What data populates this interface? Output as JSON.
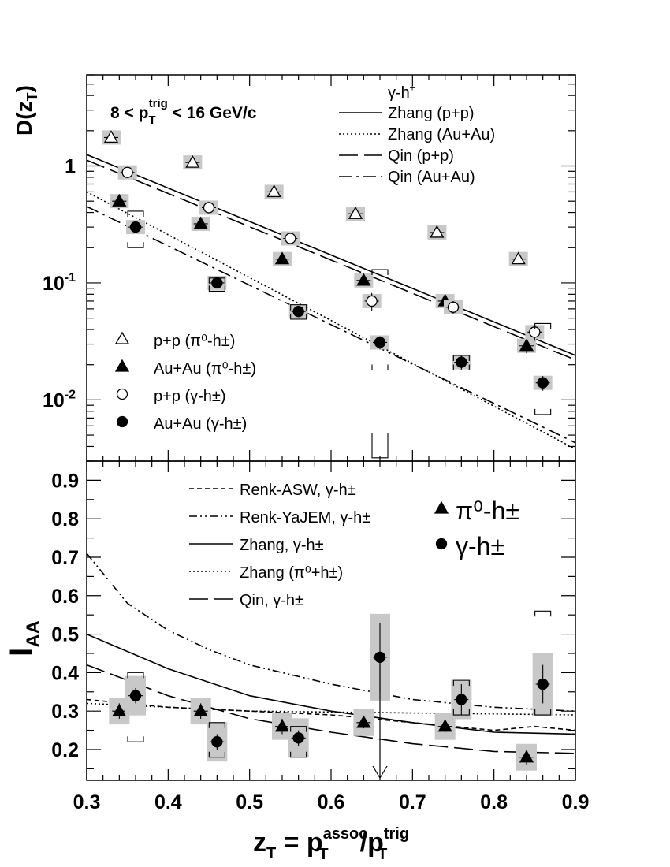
{
  "chart_data": [
    {
      "type": "scatter",
      "ylabel_main": "D(z",
      "ylabel_sub": "T",
      "ylabel_close": ")",
      "yscale": "log",
      "xlim": [
        0.3,
        0.9
      ],
      "ylim": [
        0.003,
        6.0
      ],
      "yticks": [
        {
          "value": 0.01,
          "base": "10",
          "exp": "-2"
        },
        {
          "value": 0.1,
          "base": "10",
          "exp": "-1"
        },
        {
          "value": 1,
          "base": "1",
          "exp": ""
        }
      ],
      "annotation": {
        "pre": "8 < p",
        "sub": "T",
        "sup": "trig",
        "post": " < 16 GeV/c"
      },
      "series": [
        {
          "name": "p+p (π⁰-h±)",
          "marker": "open-triangle",
          "x": [
            0.33,
            0.43,
            0.53,
            0.63,
            0.73,
            0.83
          ],
          "y": [
            1.75,
            1.07,
            0.6,
            0.39,
            0.27,
            0.16
          ],
          "yerr": [
            0.04,
            0.03,
            0.02,
            0.015,
            0.012,
            0.008
          ]
        },
        {
          "name": "Au+Au (π⁰-h±)",
          "marker": "filled-triangle",
          "x": [
            0.34,
            0.44,
            0.54,
            0.64,
            0.74,
            0.84
          ],
          "y": [
            0.5,
            0.32,
            0.16,
            0.105,
            0.07,
            0.029
          ],
          "yerr": [
            0.03,
            0.02,
            0.012,
            0.008,
            0.006,
            0.004
          ]
        },
        {
          "name": "p+p (γ-h±)",
          "marker": "open-circle",
          "x": [
            0.35,
            0.45,
            0.55,
            0.65,
            0.75,
            0.85
          ],
          "y": [
            0.88,
            0.44,
            0.24,
            0.07,
            0.062,
            0.038
          ],
          "yerr": [
            0.04,
            0.03,
            0.02,
            0.012,
            0.008,
            0.006
          ]
        },
        {
          "name": "Au+Au (γ-h±)",
          "marker": "filled-circle",
          "x": [
            0.36,
            0.46,
            0.56,
            0.66,
            0.76,
            0.86
          ],
          "y": [
            0.3,
            0.1,
            0.057,
            0.031,
            0.021,
            0.014
          ],
          "yerr": [
            0.03,
            0.01,
            0.006,
            0.004,
            0.003,
            0.002
          ]
        }
      ],
      "curves": [
        {
          "name": "Zhang (p+p)",
          "style": "solid",
          "x": [
            0.3,
            0.9
          ],
          "y": [
            1.25,
            0.024
          ]
        },
        {
          "name": "Zhang (Au+Au)",
          "style": "dotted",
          "x": [
            0.3,
            0.9
          ],
          "y": [
            0.6,
            0.0038
          ]
        },
        {
          "name": "Qin (p+p)",
          "style": "dashed",
          "x": [
            0.3,
            0.9
          ],
          "y": [
            1.12,
            0.022
          ]
        },
        {
          "name": "Qin (Au+Au)",
          "style": "dashdot",
          "x": [
            0.3,
            0.9
          ],
          "y": [
            0.45,
            0.0043
          ]
        }
      ],
      "legend_lines_title": "γ-h±",
      "legend_placement": "top-right and bottom-left"
    },
    {
      "type": "scatter",
      "ylabel_main": "I",
      "ylabel_sub": "AA",
      "xlabel": {
        "pre": "z",
        "pre_sub": "T",
        "mid": " = p",
        "mid_sup": "assoc",
        "mid_sub": "T",
        "slash": "/p",
        "end_sup": "trig",
        "end_sub": "T"
      },
      "xlim": [
        0.3,
        0.9
      ],
      "ylim": [
        0.12,
        0.95
      ],
      "xticks": [
        "0.3",
        "0.4",
        "0.5",
        "0.6",
        "0.7",
        "0.8",
        "0.9"
      ],
      "yticks": [
        "0.2",
        "0.3",
        "0.4",
        "0.5",
        "0.6",
        "0.7",
        "0.8",
        "0.9"
      ],
      "series": [
        {
          "name": "π⁰-h±",
          "marker": "filled-triangle",
          "x": [
            0.34,
            0.44,
            0.54,
            0.64,
            0.74,
            0.84
          ],
          "y": [
            0.3,
            0.3,
            0.26,
            0.27,
            0.26,
            0.18
          ],
          "yerr": [
            0.02,
            0.02,
            0.02,
            0.015,
            0.015,
            0.02
          ]
        },
        {
          "name": "γ-h±",
          "marker": "filled-circle",
          "x": [
            0.36,
            0.46,
            0.56,
            0.66,
            0.76,
            0.86
          ],
          "y": [
            0.34,
            0.22,
            0.23,
            0.44,
            0.33,
            0.37
          ],
          "yerr": [
            0.02,
            0.02,
            0.02,
            0.09,
            0.04,
            0.05
          ]
        }
      ],
      "curves": [
        {
          "name": "Renk-ASW, γ-h±",
          "style": "shortdash",
          "x": [
            0.3,
            0.4,
            0.5,
            0.6,
            0.7,
            0.8,
            0.85,
            0.9
          ],
          "y": [
            0.33,
            0.31,
            0.3,
            0.29,
            0.27,
            0.25,
            0.26,
            0.25
          ]
        },
        {
          "name": "Renk-YaJEM, γ-h±",
          "style": "dashdotdot",
          "x": [
            0.3,
            0.35,
            0.4,
            0.45,
            0.5,
            0.6,
            0.7,
            0.8,
            0.9
          ],
          "y": [
            0.71,
            0.58,
            0.51,
            0.46,
            0.42,
            0.37,
            0.33,
            0.31,
            0.3
          ]
        },
        {
          "name": "Zhang, γ-h±",
          "style": "solid",
          "x": [
            0.3,
            0.4,
            0.5,
            0.6,
            0.7,
            0.8,
            0.9
          ],
          "y": [
            0.5,
            0.41,
            0.34,
            0.3,
            0.27,
            0.245,
            0.24
          ]
        },
        {
          "name": "Zhang (π⁰+h±)",
          "style": "dotted",
          "x": [
            0.3,
            0.5,
            0.7,
            0.9
          ],
          "y": [
            0.32,
            0.3,
            0.295,
            0.29
          ]
        },
        {
          "name": "Qin, γ-h±",
          "style": "dashed",
          "x": [
            0.3,
            0.4,
            0.5,
            0.6,
            0.7,
            0.8,
            0.9
          ],
          "y": [
            0.42,
            0.34,
            0.28,
            0.245,
            0.215,
            0.195,
            0.19
          ]
        }
      ],
      "legend_placement": "top"
    }
  ]
}
